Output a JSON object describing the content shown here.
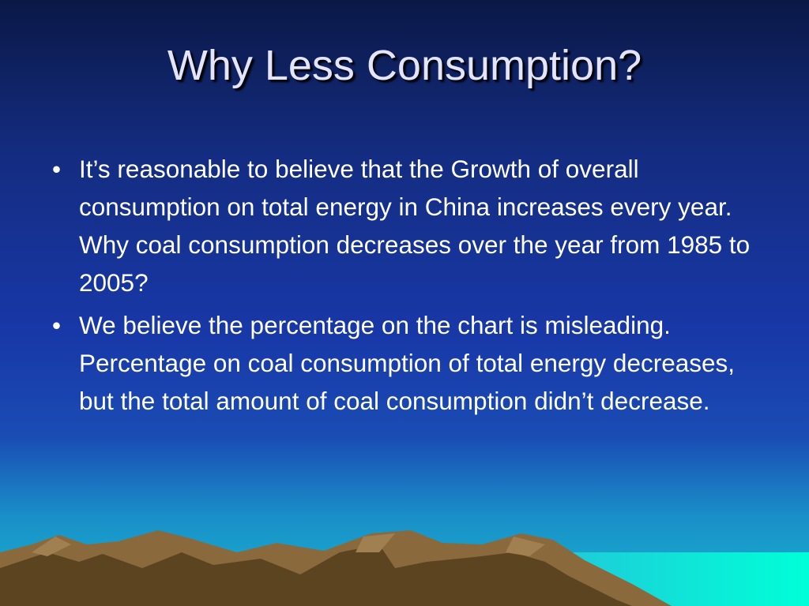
{
  "slide": {
    "title": "Why Less Consumption?",
    "bullets": [
      "It’s reasonable to believe that the Growth of overall consumption on total energy in China increases every year. Why coal consumption decreases over the year from 1985 to 2005?",
      "We believe the percentage on the chart is misleading. Percentage on coal consumption of total energy decreases, but the total amount of coal consumption didn’t decrease."
    ]
  }
}
